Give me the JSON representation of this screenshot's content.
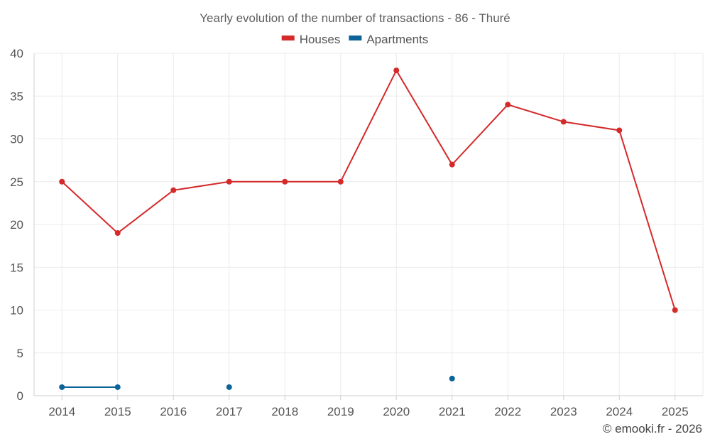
{
  "chart_data": {
    "type": "line",
    "title": "Yearly evolution of the number of transactions - 86 - Thuré",
    "categories": [
      "2014",
      "2015",
      "2016",
      "2017",
      "2018",
      "2019",
      "2020",
      "2021",
      "2022",
      "2023",
      "2024",
      "2025"
    ],
    "ylim": [
      0,
      40
    ],
    "yticks": [
      0,
      5,
      10,
      15,
      20,
      25,
      30,
      35,
      40
    ],
    "grid": true,
    "legend_position": "top-center",
    "series": [
      {
        "name": "Houses",
        "color": "#d42a2a",
        "values": [
          25,
          19,
          24,
          25,
          25,
          25,
          38,
          27,
          34,
          32,
          31,
          10
        ]
      },
      {
        "name": "Apartments",
        "color": "#0b6398",
        "values": [
          1,
          1,
          null,
          1,
          null,
          null,
          null,
          2,
          null,
          null,
          null,
          null
        ]
      }
    ]
  },
  "credit": "© emooki.fr - 2026"
}
